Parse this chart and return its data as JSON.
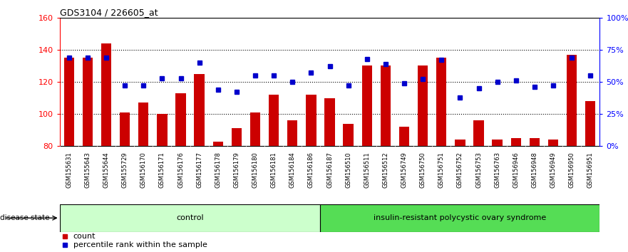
{
  "title": "GDS3104 / 226605_at",
  "samples": [
    "GSM155631",
    "GSM155643",
    "GSM155644",
    "GSM155729",
    "GSM156170",
    "GSM156171",
    "GSM156176",
    "GSM156177",
    "GSM156178",
    "GSM156179",
    "GSM156180",
    "GSM156181",
    "GSM156184",
    "GSM156186",
    "GSM156187",
    "GSM156510",
    "GSM156511",
    "GSM156512",
    "GSM156749",
    "GSM156750",
    "GSM156751",
    "GSM156752",
    "GSM156753",
    "GSM156763",
    "GSM156946",
    "GSM156948",
    "GSM156949",
    "GSM156950",
    "GSM156951"
  ],
  "bar_values": [
    135,
    135,
    144,
    101,
    107,
    100,
    113,
    125,
    83,
    91,
    101,
    112,
    96,
    112,
    110,
    94,
    130,
    130,
    92,
    130,
    135,
    84,
    96,
    84,
    85,
    85,
    84,
    137,
    108
  ],
  "percentile_values": [
    69,
    69,
    69,
    47,
    47,
    53,
    53,
    65,
    44,
    42,
    55,
    55,
    50,
    57,
    62,
    47,
    68,
    64,
    49,
    52,
    67,
    38,
    45,
    50,
    51,
    46,
    47,
    69,
    55
  ],
  "control_count": 14,
  "ylim_left": [
    80,
    160
  ],
  "ylim_right": [
    0,
    100
  ],
  "yticks_left": [
    80,
    100,
    120,
    140,
    160
  ],
  "yticks_right": [
    0,
    25,
    50,
    75,
    100
  ],
  "ytick_right_labels": [
    "0%",
    "25%",
    "50%",
    "75%",
    "100%"
  ],
  "bar_color": "#cc0000",
  "marker_color": "#0000cc",
  "control_label": "control",
  "disease_label": "insulin-resistant polycystic ovary syndrome",
  "control_bg": "#ccffcc",
  "disease_bg": "#55dd55",
  "xtick_bg": "#cccccc",
  "legend_count": "count",
  "legend_percentile": "percentile rank within the sample",
  "background_color": "#ffffff"
}
